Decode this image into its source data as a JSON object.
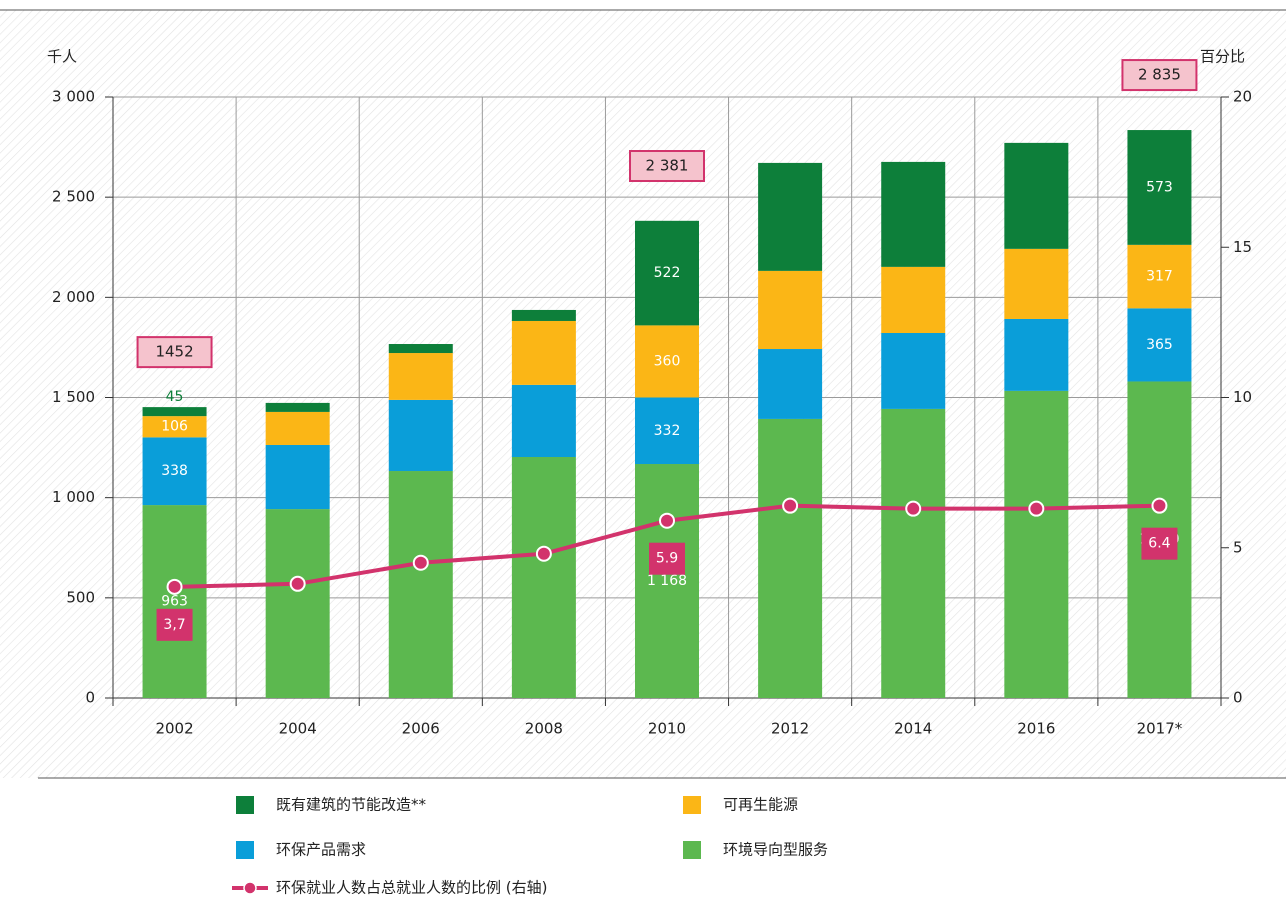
{
  "chart_data": {
    "type": "stacked-bar-line",
    "y_label": "千人",
    "y2_label": "百分比",
    "categories": [
      "2002",
      "2004",
      "2006",
      "2008",
      "2010",
      "2012",
      "2014",
      "2016",
      "2017*"
    ],
    "series": [
      {
        "name": "环境导向型服务",
        "color": "#5cb84f",
        "values": [
          963,
          943,
          1133,
          1203,
          1168,
          1393,
          1443,
          1533,
          1580
        ],
        "value_labels": [
          "963",
          null,
          null,
          null,
          "1 168",
          null,
          null,
          null,
          "1 580"
        ]
      },
      {
        "name": "环保产品需求",
        "color": "#0a9ed9",
        "values": [
          338,
          320,
          355,
          360,
          332,
          349,
          379,
          359,
          365
        ],
        "value_labels": [
          "338",
          null,
          null,
          null,
          "332",
          null,
          null,
          null,
          "365"
        ]
      },
      {
        "name": "可再生能源",
        "color": "#fbb616",
        "values": [
          106,
          165,
          234,
          319,
          360,
          390,
          330,
          350,
          317
        ],
        "value_labels": [
          "106",
          null,
          null,
          null,
          "360",
          null,
          null,
          null,
          "317"
        ]
      },
      {
        "name": "既有建筑的节能改造**",
        "color": "#0d7f3a",
        "values": [
          45,
          45,
          45,
          55,
          522,
          539,
          524,
          529,
          573
        ],
        "value_labels": [
          "45",
          null,
          null,
          null,
          "522",
          null,
          null,
          null,
          "573"
        ]
      },
      {
        "name": "环保就业人数占总就业人数的比例 (右轴)",
        "color": "#d2336c",
        "axis": "y2",
        "kind": "line",
        "values": [
          3.7,
          3.8,
          4.5,
          4.8,
          5.9,
          6.4,
          6.3,
          6.3,
          6.4
        ],
        "value_labels": [
          "3,7",
          null,
          null,
          null,
          "5.9",
          null,
          null,
          null,
          "6.4"
        ]
      }
    ],
    "totals": [
      1452,
      null,
      null,
      null,
      2381,
      null,
      null,
      null,
      2835
    ],
    "total_labels": [
      "1452",
      null,
      null,
      null,
      "2 381",
      null,
      null,
      null,
      "2 835"
    ],
    "ylim": [
      0,
      3000
    ],
    "yticks": [
      0,
      500,
      {
        "value": 1000,
        "label": "1 000"
      },
      {
        "value": 1500,
        "label": "1 500"
      },
      {
        "value": 2000,
        "label": "2 000"
      },
      {
        "value": 2500,
        "label": "2 500"
      },
      {
        "value": 3000,
        "label": "3 000"
      }
    ],
    "y2lim": [
      0,
      20
    ],
    "y2ticks": [
      0,
      5,
      10,
      15,
      20
    ],
    "grid": true,
    "legend": "bottom"
  }
}
